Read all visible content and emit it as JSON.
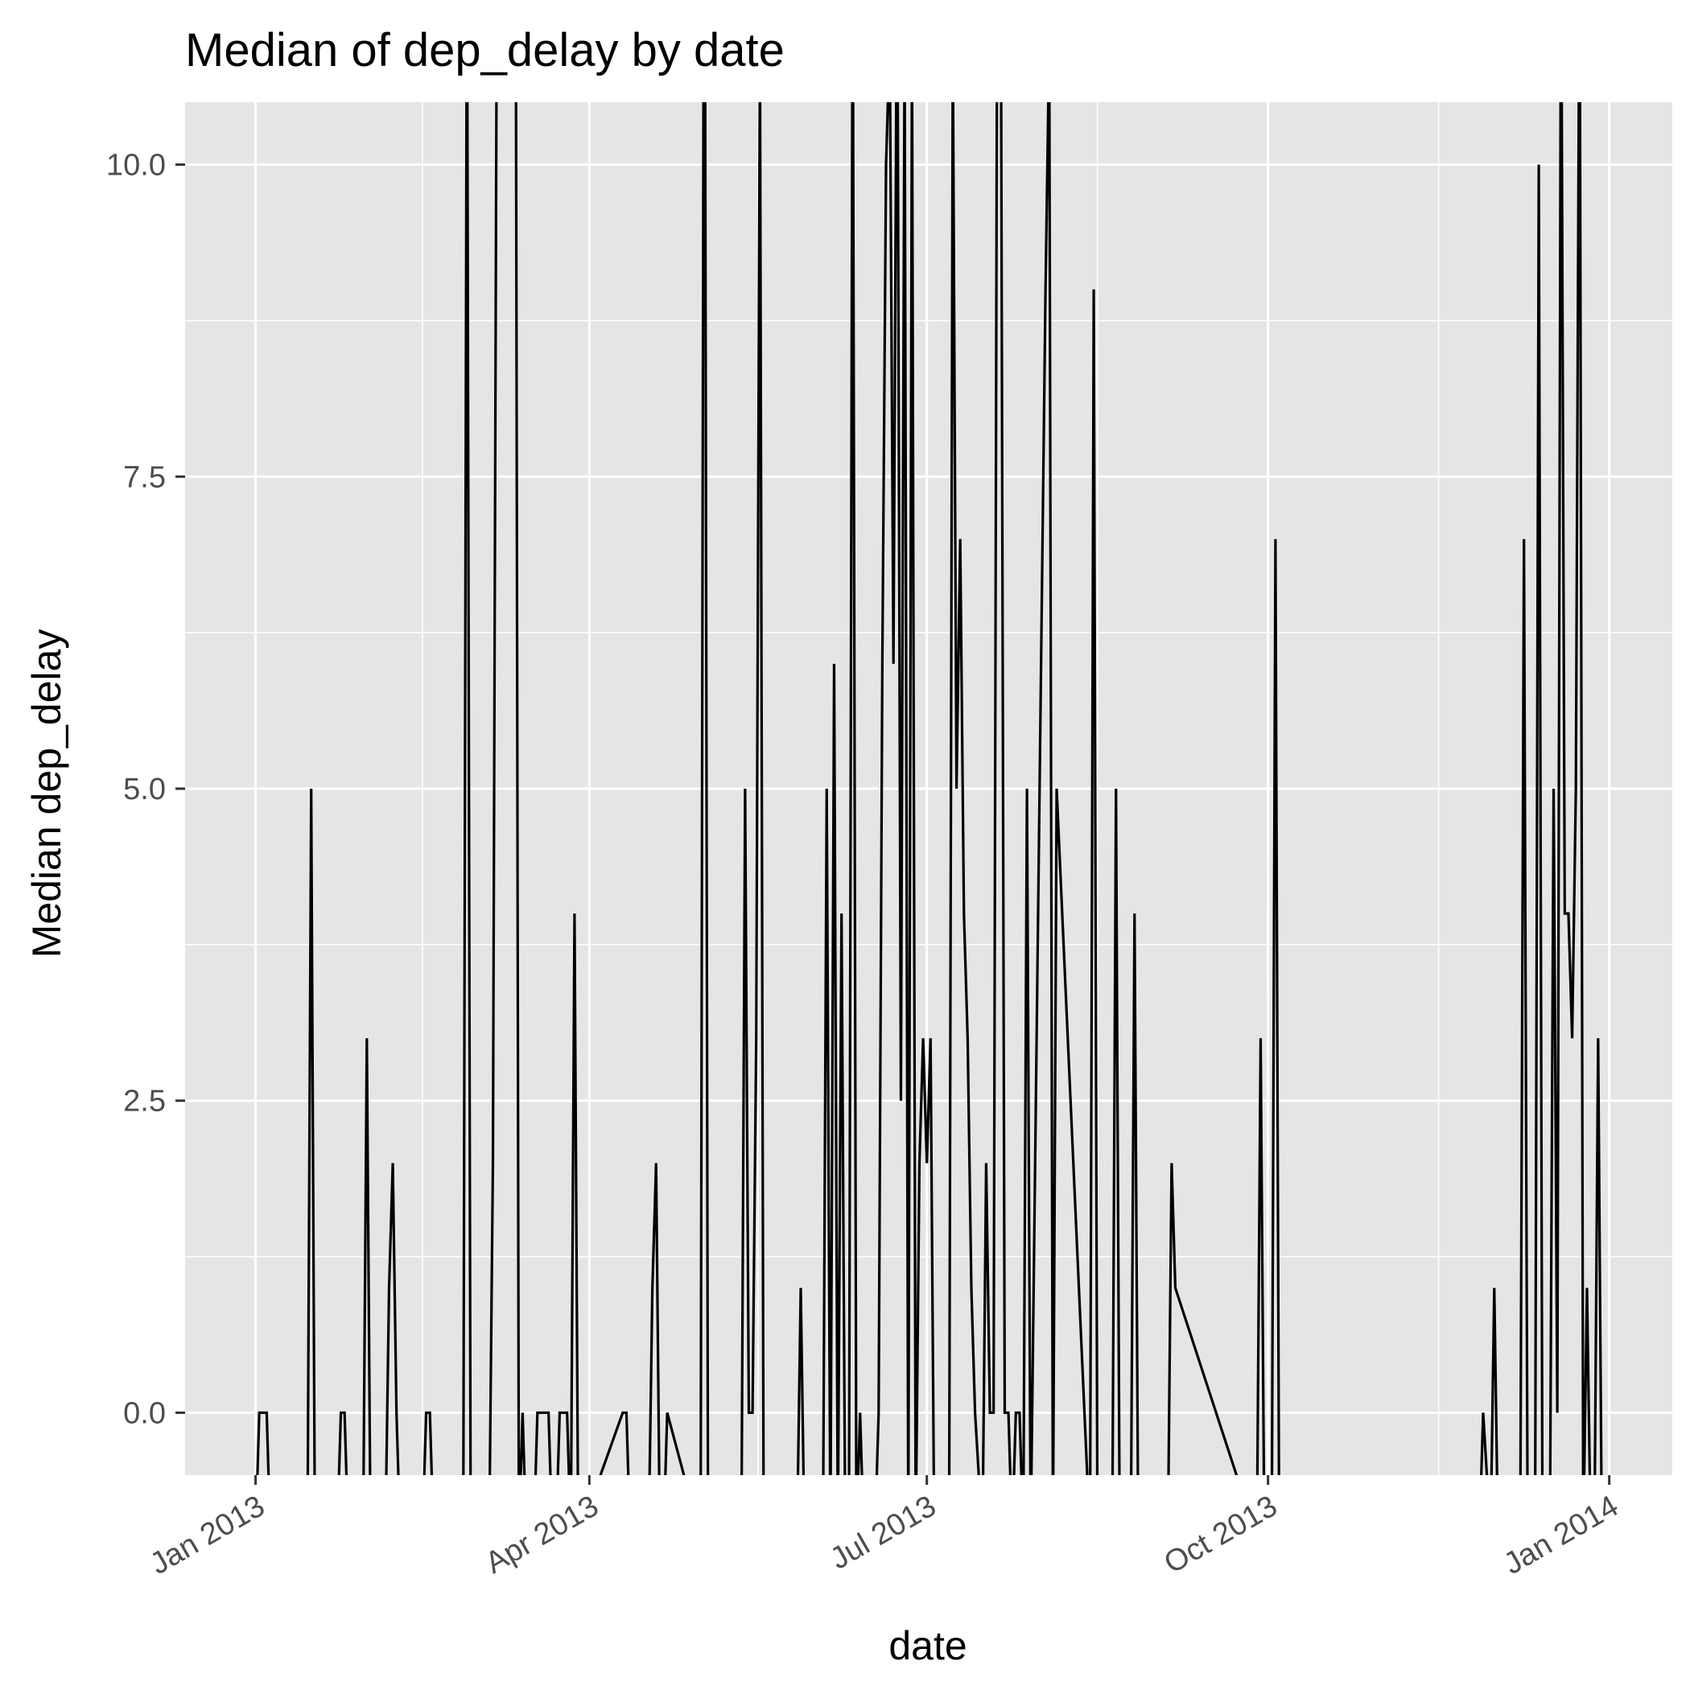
{
  "chart_data": {
    "type": "line",
    "title": "Median of dep_delay by date",
    "xlabel": "date",
    "ylabel": "Median dep_delay",
    "x_axis": {
      "type": "date",
      "min": "2012-12-13",
      "max": "2014-01-18",
      "ticks": [
        {
          "date": "2013-01-01",
          "label": "Jan 2013"
        },
        {
          "date": "2013-04-01",
          "label": "Apr 2013"
        },
        {
          "date": "2013-07-01",
          "label": "Jul 2013"
        },
        {
          "date": "2013-10-01",
          "label": "Oct 2013"
        },
        {
          "date": "2014-01-01",
          "label": "Jan 2014"
        }
      ]
    },
    "y_axis": {
      "min": -0.5,
      "max": 10.5,
      "ticks": [
        0,
        2.5,
        5,
        7.5,
        10
      ],
      "tick_labels": [
        "0.0",
        "2.5",
        "5.0",
        "7.5",
        "10.0"
      ]
    },
    "grid": true,
    "legend": "none",
    "colors": {
      "panel": "#e5e5e5",
      "grid": "#ffffff",
      "line": "#000000",
      "tick": "#333333"
    },
    "series": [
      {
        "x": [
          "2013-01-01",
          "2013-01-02",
          "2013-01-03",
          "2013-01-04",
          "2013-01-05",
          "2013-01-15",
          "2013-01-16",
          "2013-01-17",
          "2013-01-23",
          "2013-01-24",
          "2013-01-25",
          "2013-01-26",
          "2013-01-30",
          "2013-01-31",
          "2013-02-01",
          "2013-02-05",
          "2013-02-06",
          "2013-02-07",
          "2013-02-08",
          "2013-02-09",
          "2013-02-15",
          "2013-02-16",
          "2013-02-17",
          "2013-02-18",
          "2013-02-26",
          "2013-02-27",
          "2013-02-28",
          "2013-03-05",
          "2013-03-06",
          "2013-03-07",
          "2013-03-12",
          "2013-03-13",
          "2013-03-14",
          "2013-03-15",
          "2013-03-17",
          "2013-03-18",
          "2013-03-19",
          "2013-03-21",
          "2013-03-22",
          "2013-03-23",
          "2013-03-24",
          "2013-03-26",
          "2013-03-27",
          "2013-03-28",
          "2013-03-29",
          "2013-04-10",
          "2013-04-11",
          "2013-04-12",
          "2013-04-17",
          "2013-04-18",
          "2013-04-19",
          "2013-04-20",
          "2013-04-21",
          "2013-04-22",
          "2013-05-01",
          "2013-05-02",
          "2013-05-03",
          "2013-05-12",
          "2013-05-13",
          "2013-05-14",
          "2013-05-15",
          "2013-05-16",
          "2013-05-17",
          "2013-05-18",
          "2013-05-27",
          "2013-05-28",
          "2013-05-29",
          "2013-06-03",
          "2013-06-04",
          "2013-06-05",
          "2013-06-06",
          "2013-06-07",
          "2013-06-08",
          "2013-06-09",
          "2013-06-10",
          "2013-06-11",
          "2013-06-12",
          "2013-06-13",
          "2013-06-14",
          "2013-06-17",
          "2013-06-18",
          "2013-06-19",
          "2013-06-20",
          "2013-06-21",
          "2013-06-22",
          "2013-06-23",
          "2013-06-24",
          "2013-06-25",
          "2013-06-26",
          "2013-06-27",
          "2013-06-28",
          "2013-06-29",
          "2013-06-30",
          "2013-07-01",
          "2013-07-02",
          "2013-07-03",
          "2013-07-04",
          "2013-07-07",
          "2013-07-08",
          "2013-07-09",
          "2013-07-10",
          "2013-07-11",
          "2013-07-12",
          "2013-07-13",
          "2013-07-14",
          "2013-07-16",
          "2013-07-17",
          "2013-07-18",
          "2013-07-19",
          "2013-07-20",
          "2013-07-21",
          "2013-07-22",
          "2013-07-23",
          "2013-07-24",
          "2013-07-25",
          "2013-07-26",
          "2013-07-27",
          "2013-07-28",
          "2013-07-29",
          "2013-08-02",
          "2013-08-03",
          "2013-08-04",
          "2013-08-05",
          "2013-08-14",
          "2013-08-15",
          "2013-08-16",
          "2013-08-20",
          "2013-08-21",
          "2013-08-22",
          "2013-08-25",
          "2013-08-26",
          "2013-08-27",
          "2013-09-04",
          "2013-09-05",
          "2013-09-06",
          "2013-09-28",
          "2013-09-29",
          "2013-09-30",
          "2013-10-02",
          "2013-10-03",
          "2013-10-04",
          "2013-11-27",
          "2013-11-28",
          "2013-11-30",
          "2013-12-01",
          "2013-12-02",
          "2013-12-08",
          "2013-12-09",
          "2013-12-10",
          "2013-12-12",
          "2013-12-13",
          "2013-12-14",
          "2013-12-16",
          "2013-12-17",
          "2013-12-18",
          "2013-12-19",
          "2013-12-20",
          "2013-12-21",
          "2013-12-22",
          "2013-12-23",
          "2013-12-24",
          "2013-12-25",
          "2013-12-26",
          "2013-12-27",
          "2013-12-28",
          "2013-12-29",
          "2013-12-30",
          "2013-12-31"
        ],
        "y": [
          -1,
          0,
          0,
          0,
          -1,
          -1,
          5,
          -1,
          -1,
          0,
          0,
          -1,
          -1,
          3,
          -1,
          -1,
          1,
          2,
          0,
          -1,
          -1,
          0,
          0,
          -1,
          -1,
          12,
          -1,
          -1,
          2,
          11,
          14,
          -1,
          0,
          -1,
          -1,
          0,
          0,
          0,
          -1,
          -1,
          0,
          0,
          -1,
          4,
          -1,
          0,
          0,
          -1,
          -1,
          1,
          2,
          -1,
          -1,
          0,
          -1,
          14,
          -1,
          -1,
          5,
          0,
          0,
          3,
          11,
          -1,
          -1,
          1,
          -1,
          -1,
          5,
          -1,
          6,
          -1,
          4,
          -1,
          -1,
          12,
          -1,
          0,
          -1,
          -1,
          0,
          6,
          10,
          11,
          6,
          12,
          2.5,
          11,
          -1,
          11,
          -1,
          2,
          3,
          2,
          3,
          -1,
          -1,
          -1,
          11,
          5,
          7,
          4,
          3,
          1,
          0,
          -1,
          2,
          0,
          0,
          12,
          11,
          0,
          0,
          -1,
          0,
          0,
          -1,
          5,
          -1,
          9,
          11,
          -1,
          5,
          -1,
          9,
          -1,
          -1,
          5,
          -1,
          -1,
          4,
          -1,
          -1,
          2,
          1,
          -1,
          3,
          -1,
          -1,
          7,
          -1,
          -1,
          0,
          -1,
          1,
          -1,
          -1,
          7,
          -1,
          -1,
          10,
          -1,
          -1,
          5,
          0,
          12,
          4,
          4,
          3,
          5,
          12,
          -1,
          1,
          -1,
          -1,
          3,
          -1,
          -1
        ],
        "y_note": "values outside the plotted range are clipped at the panel edges"
      }
    ]
  }
}
